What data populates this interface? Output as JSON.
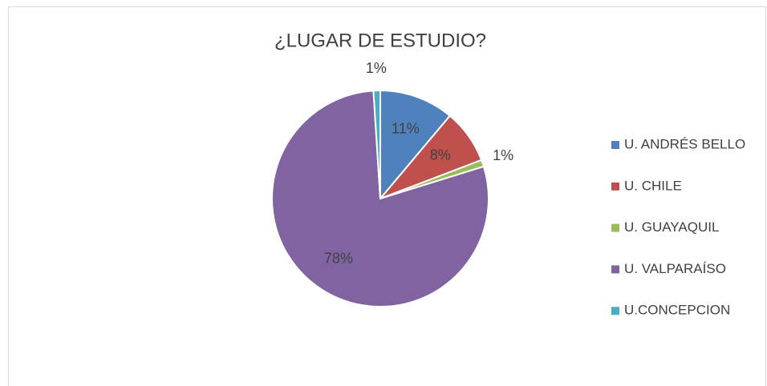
{
  "chart_data": {
    "type": "pie",
    "title": "¿LUGAR DE ESTUDIO?",
    "categories": [
      "U. ANDRÉS BELLO",
      "U. CHILE",
      "U. GUAYAQUIL",
      "U. VALPARAÍSO",
      "U.CONCEPCION"
    ],
    "values": [
      11,
      8,
      1,
      78,
      1
    ],
    "value_labels": [
      "11%",
      "8%",
      "1%",
      "78%",
      "1%"
    ],
    "colors": [
      "#4f81bd",
      "#c0504d",
      "#9bbb59",
      "#8064a2",
      "#4bacc6"
    ],
    "legend": "right"
  }
}
